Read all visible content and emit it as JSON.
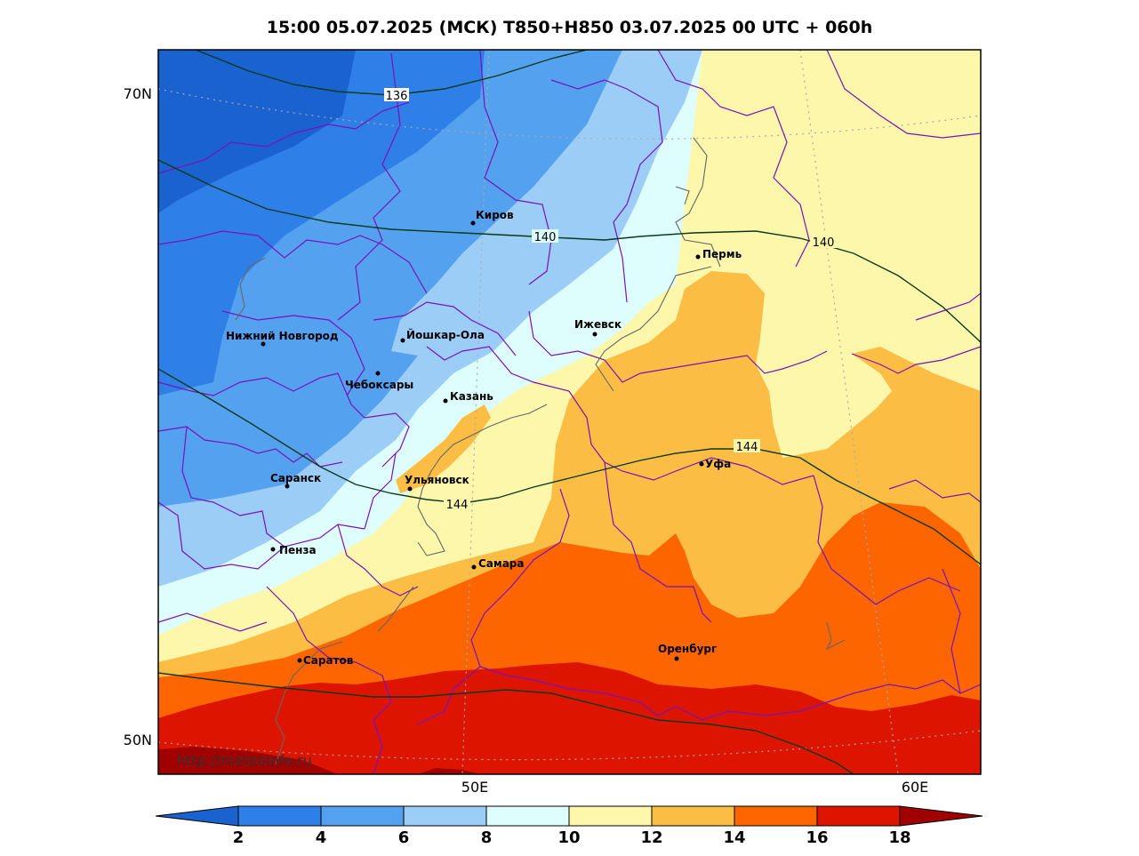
{
  "title": "15:00 05.07.2025 (МСК) T850+H850 03.07.2025 00 UTC + 060h",
  "lat_labels": [
    "70N",
    "50N"
  ],
  "lon_labels": [
    "50E",
    "60E"
  ],
  "cities": [
    {
      "name": "Киров"
    },
    {
      "name": "Пермь"
    },
    {
      "name": "Нижний Новгород"
    },
    {
      "name": "Йошкар-Ола"
    },
    {
      "name": "Ижевск"
    },
    {
      "name": "Чебоксары"
    },
    {
      "name": "Казань"
    },
    {
      "name": "Саранск"
    },
    {
      "name": "Ульяновск"
    },
    {
      "name": "Уфа"
    },
    {
      "name": "Пенза"
    },
    {
      "name": "Самара"
    },
    {
      "name": "Оренбург"
    },
    {
      "name": "Саратов"
    }
  ],
  "contour_labels": [
    "136",
    "140",
    "140",
    "144",
    "144"
  ],
  "colorbar": {
    "ticks": [
      "2",
      "4",
      "6",
      "8",
      "10",
      "12",
      "14",
      "16",
      "18"
    ],
    "colors": [
      "#1a62cf",
      "#2e7fe8",
      "#54a1ef",
      "#9bcdf7",
      "#defdfd",
      "#fdf7ab",
      "#fcbd44",
      "#fd6500",
      "#dd1500",
      "#a00000"
    ]
  },
  "url": "http://meteoinfo.ru"
}
